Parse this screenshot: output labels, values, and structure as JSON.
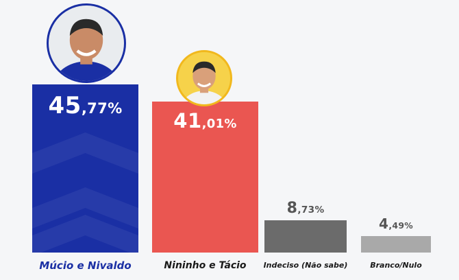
{
  "chart_data": {
    "type": "bar",
    "categories": [
      "Múcio e Nivaldo",
      "Nininho e Tácio",
      "Indeciso (Não sabe)",
      "Branco/Nulo"
    ],
    "values": [
      45.77,
      41.01,
      8.73,
      4.49
    ],
    "value_labels": [
      {
        "int": "45",
        "dec": ",77%"
      },
      {
        "int": "41",
        "dec": ",01%"
      },
      {
        "int": "8",
        "dec": ",73%"
      },
      {
        "int": "4",
        "dec": ",49%"
      }
    ],
    "colors": [
      "#1a2fa4",
      "#ea5651",
      "#6b6b6b",
      "#a9a9a9"
    ],
    "label_colors": [
      "#1a2fa4",
      "#1a1a1a",
      "#1a1a1a",
      "#1a1a1a"
    ],
    "value_label_colors": [
      "#ffffff",
      "#ffffff",
      "#555555",
      "#555555"
    ],
    "ylim": [
      0,
      50
    ],
    "grid": false,
    "legend": "none"
  },
  "icons": {
    "candidate_1": "candidate-photo-icon",
    "candidate_2": "candidate-photo-icon"
  }
}
